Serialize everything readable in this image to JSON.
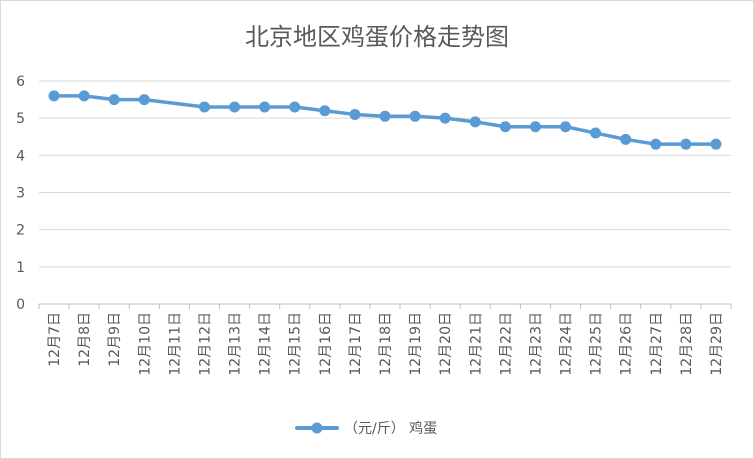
{
  "chart_data": {
    "type": "line",
    "title": "北京地区鸡蛋价格走势图",
    "xlabel": "",
    "ylabel": "",
    "categories": [
      "12月7日",
      "12月8日",
      "12月9日",
      "12月10日",
      "12月11日",
      "12月12日",
      "12月13日",
      "12月14日",
      "12月15日",
      "12月16日",
      "12月17日",
      "12月18日",
      "12月19日",
      "12月20日",
      "12月21日",
      "12月22日",
      "12月23日",
      "12月24日",
      "12月25日",
      "12月26日",
      "12月27日",
      "12月28日",
      "12月29日"
    ],
    "series": [
      {
        "name": "（元/斤） 鸡蛋",
        "values": [
          5.6,
          5.6,
          5.5,
          5.5,
          null,
          5.3,
          5.3,
          5.3,
          5.3,
          5.2,
          5.1,
          5.05,
          5.05,
          5.0,
          4.9,
          4.77,
          4.77,
          4.77,
          4.6,
          4.43,
          4.3,
          4.3,
          4.3
        ]
      }
    ],
    "connect_gaps": true,
    "yticks": [
      "0",
      "1",
      "2",
      "3",
      "4",
      "5",
      "6"
    ],
    "ylim": [
      0,
      6
    ],
    "grid": true,
    "legend_position": "bottom",
    "colors": {
      "series": "#5b9bd5",
      "grid": "#d9d9d9",
      "text": "#595959"
    }
  }
}
